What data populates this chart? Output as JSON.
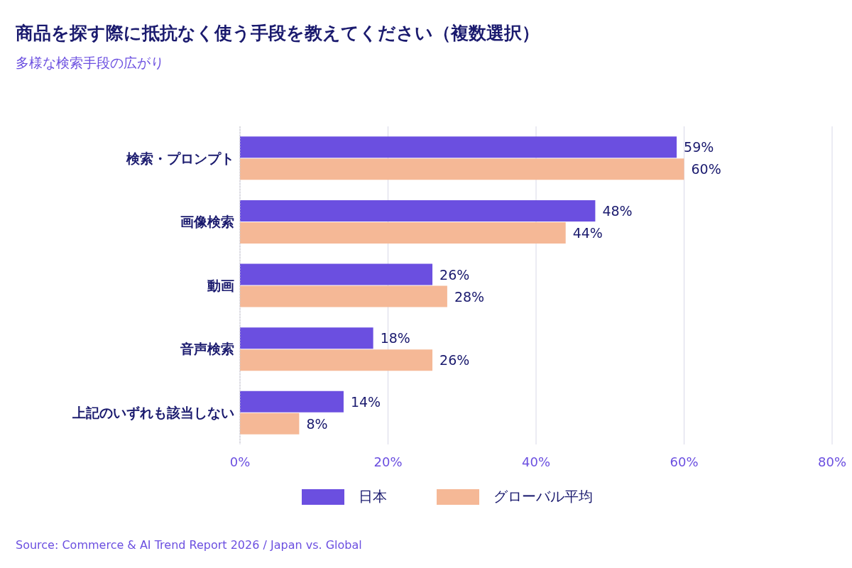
{
  "chart_data": {
    "type": "bar",
    "orientation": "horizontal",
    "title": "商品を探す際に抵抗なく使う手段を教えてください（複数選択）",
    "subtitle": "多様な検索手段の広がり",
    "categories": [
      "検索・プロンプト",
      "画像検索",
      "動画",
      "音声検索",
      "上記のいずれも該当しない"
    ],
    "series": [
      {
        "name": "日本",
        "color": "#6b4fe0",
        "values": [
          59,
          48,
          26,
          18,
          14
        ],
        "value_labels": [
          "59%",
          "48%",
          "26%",
          "18%",
          "14%"
        ]
      },
      {
        "name": "グローバル平均",
        "color": "#f5b896",
        "values": [
          60,
          44,
          28,
          26,
          8
        ],
        "value_labels": [
          "60%",
          "44%",
          "28%",
          "26%",
          "8%"
        ]
      }
    ],
    "xlim": [
      0,
      80
    ],
    "xticks": [
      {
        "value": 0,
        "label": "0%"
      },
      {
        "value": 20,
        "label": "20%"
      },
      {
        "value": 40,
        "label": "40%"
      },
      {
        "value": 60,
        "label": "60%"
      },
      {
        "value": 80,
        "label": "80%"
      }
    ],
    "grid": "x",
    "legend": "bottom",
    "annotations": [
      "Source: Commerce & AI Trend Report 2026 / Japan vs. Global"
    ]
  }
}
